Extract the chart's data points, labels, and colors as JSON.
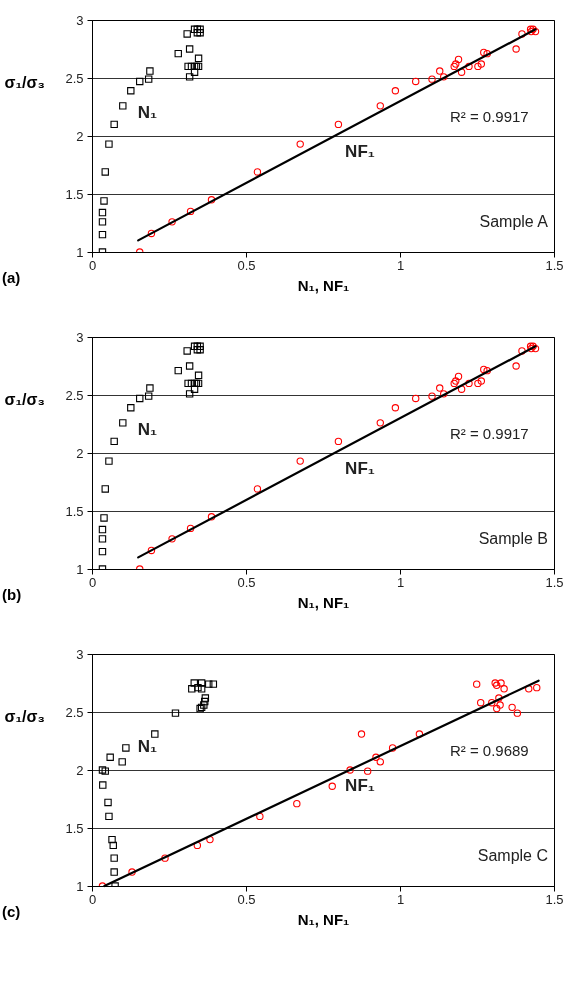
{
  "chart_data": [
    {
      "type": "scatter",
      "title": "(a)",
      "xlabel": "N₁, NF₁",
      "ylabel": "σ₁/σ₃",
      "xlim": [
        0,
        1.5
      ],
      "xticks": [
        0,
        0.5,
        1,
        1.5
      ],
      "ylim": [
        1,
        3
      ],
      "yticks": [
        1,
        1.5,
        2,
        2.5,
        3
      ],
      "grid": "y",
      "annotations": [
        "N₁",
        "NF₁",
        "R² = 0.9917",
        "Sample A"
      ],
      "series": [
        {
          "type": "scatter",
          "marker": "square",
          "color": "#000000",
          "x": [
            0.034,
            0.034,
            0.034,
            0.034,
            0.039,
            0.043,
            0.055,
            0.072,
            0.1,
            0.126,
            0.155,
            0.184,
            0.188,
            0.28,
            0.309,
            0.317,
            0.312,
            0.317,
            0.323,
            0.333,
            0.333,
            0.339,
            0.346,
            0.346,
            0.333,
            0.342,
            0.351,
            0.342,
            0.351
          ],
          "values": [
            1.0,
            1.15,
            1.26,
            1.34,
            1.44,
            1.69,
            1.93,
            2.1,
            2.26,
            2.39,
            2.47,
            2.49,
            2.56,
            2.71,
            2.88,
            2.75,
            2.6,
            2.51,
            2.6,
            2.55,
            2.6,
            2.6,
            2.6,
            2.67,
            2.92,
            2.92,
            2.92,
            2.89,
            2.89
          ]
        },
        {
          "type": "scatter",
          "marker": "circle",
          "color": "#ff0000",
          "x": [
            0.155,
            0.193,
            0.26,
            0.32,
            0.388,
            0.537,
            0.676,
            0.8,
            0.936,
            0.985,
            1.051,
            1.104,
            1.129,
            1.142,
            1.176,
            1.181,
            1.19,
            1.2,
            1.224,
            1.253,
            1.264,
            1.272,
            1.283,
            1.377,
            1.396,
            1.424,
            1.432,
            1.44,
            1.426
          ],
          "values": [
            1.0,
            1.16,
            1.26,
            1.35,
            1.45,
            1.69,
            1.93,
            2.1,
            2.26,
            2.39,
            2.47,
            2.49,
            2.56,
            2.51,
            2.6,
            2.62,
            2.66,
            2.55,
            2.6,
            2.6,
            2.62,
            2.72,
            2.71,
            2.75,
            2.88,
            2.92,
            2.92,
            2.9,
            2.9
          ]
        },
        {
          "type": "line",
          "color": "#000000",
          "x": [
            0.15,
            1.44
          ],
          "values": [
            1.1,
            2.92
          ]
        }
      ]
    },
    {
      "type": "scatter",
      "title": "(b)",
      "xlabel": "N₁, NF₁",
      "ylabel": "σ₁/σ₃",
      "xlim": [
        0,
        1.5
      ],
      "xticks": [
        0,
        0.5,
        1,
        1.5
      ],
      "ylim": [
        1,
        3
      ],
      "yticks": [
        1,
        1.5,
        2,
        2.5,
        3
      ],
      "grid": "y",
      "annotations": [
        "N₁",
        "NF₁",
        "R² = 0.9917",
        "Sample B"
      ],
      "series": [
        {
          "type": "scatter",
          "marker": "square",
          "color": "#000000",
          "x": [
            0.034,
            0.034,
            0.034,
            0.034,
            0.039,
            0.043,
            0.055,
            0.072,
            0.1,
            0.126,
            0.155,
            0.184,
            0.188,
            0.28,
            0.309,
            0.317,
            0.312,
            0.317,
            0.323,
            0.333,
            0.333,
            0.339,
            0.346,
            0.346,
            0.333,
            0.342,
            0.351,
            0.342,
            0.351
          ],
          "values": [
            1.0,
            1.15,
            1.26,
            1.34,
            1.44,
            1.69,
            1.93,
            2.1,
            2.26,
            2.39,
            2.47,
            2.49,
            2.56,
            2.71,
            2.88,
            2.75,
            2.6,
            2.51,
            2.6,
            2.55,
            2.6,
            2.6,
            2.6,
            2.67,
            2.92,
            2.92,
            2.92,
            2.89,
            2.89
          ]
        },
        {
          "type": "scatter",
          "marker": "circle",
          "color": "#ff0000",
          "x": [
            0.155,
            0.193,
            0.26,
            0.32,
            0.388,
            0.537,
            0.676,
            0.8,
            0.936,
            0.985,
            1.051,
            1.104,
            1.129,
            1.142,
            1.176,
            1.181,
            1.19,
            1.2,
            1.224,
            1.253,
            1.264,
            1.272,
            1.283,
            1.377,
            1.396,
            1.424,
            1.432,
            1.44,
            1.426
          ],
          "values": [
            1.0,
            1.16,
            1.26,
            1.35,
            1.45,
            1.69,
            1.93,
            2.1,
            2.26,
            2.39,
            2.47,
            2.49,
            2.56,
            2.51,
            2.6,
            2.62,
            2.66,
            2.55,
            2.6,
            2.6,
            2.62,
            2.72,
            2.71,
            2.75,
            2.88,
            2.92,
            2.92,
            2.9,
            2.9
          ]
        },
        {
          "type": "line",
          "color": "#000000",
          "x": [
            0.15,
            1.44
          ],
          "values": [
            1.1,
            2.92
          ]
        }
      ]
    },
    {
      "type": "scatter",
      "title": "(c)",
      "xlabel": "N₁, NF₁",
      "ylabel": "σ₁/σ₃",
      "xlim": [
        0,
        1.5
      ],
      "xticks": [
        0,
        0.5,
        1,
        1.5
      ],
      "ylim": [
        1,
        3
      ],
      "yticks": [
        1,
        1.5,
        2,
        2.5,
        3
      ],
      "grid": "y",
      "annotations": [
        "N₁",
        "NF₁",
        "R² = 0.9689",
        "Sample C"
      ],
      "series": [
        {
          "type": "scatter",
          "marker": "square",
          "color": "#000000",
          "x": [
            0.075,
            0.072,
            0.072,
            0.069,
            0.065,
            0.055,
            0.052,
            0.035,
            0.034,
            0.043,
            0.059,
            0.098,
            0.11,
            0.204,
            0.271,
            0.324,
            0.332,
            0.344,
            0.356,
            0.356,
            0.379,
            0.394,
            0.351,
            0.356,
            0.363,
            0.366,
            0.368
          ],
          "values": [
            1.0,
            1.12,
            1.24,
            1.35,
            1.4,
            1.6,
            1.72,
            1.87,
            2.0,
            1.99,
            2.11,
            2.07,
            2.19,
            2.31,
            2.49,
            2.7,
            2.75,
            2.71,
            2.75,
            2.7,
            2.74,
            2.74,
            2.53,
            2.54,
            2.56,
            2.59,
            2.62
          ]
        },
        {
          "type": "scatter",
          "marker": "circle",
          "color": "#ff0000",
          "x": [
            0.034,
            0.13,
            0.237,
            0.342,
            0.383,
            0.545,
            0.665,
            0.78,
            0.838,
            0.895,
            0.875,
            0.922,
            0.936,
            0.976,
            1.063,
            1.249,
            1.262,
            1.298,
            1.309,
            1.314,
            1.328,
            1.338,
            1.321,
            1.314,
            1.325,
            1.364,
            1.381,
            1.418,
            1.444
          ],
          "values": [
            1.0,
            1.12,
            1.24,
            1.35,
            1.4,
            1.6,
            1.71,
            1.86,
            2.0,
            1.99,
            2.31,
            2.11,
            2.07,
            2.19,
            2.31,
            2.74,
            2.58,
            2.58,
            2.75,
            2.73,
            2.75,
            2.7,
            2.62,
            2.53,
            2.56,
            2.54,
            2.49,
            2.7,
            2.71
          ]
        },
        {
          "type": "line",
          "color": "#000000",
          "x": [
            0.04,
            1.45
          ],
          "values": [
            1.0,
            2.77
          ]
        }
      ]
    }
  ]
}
